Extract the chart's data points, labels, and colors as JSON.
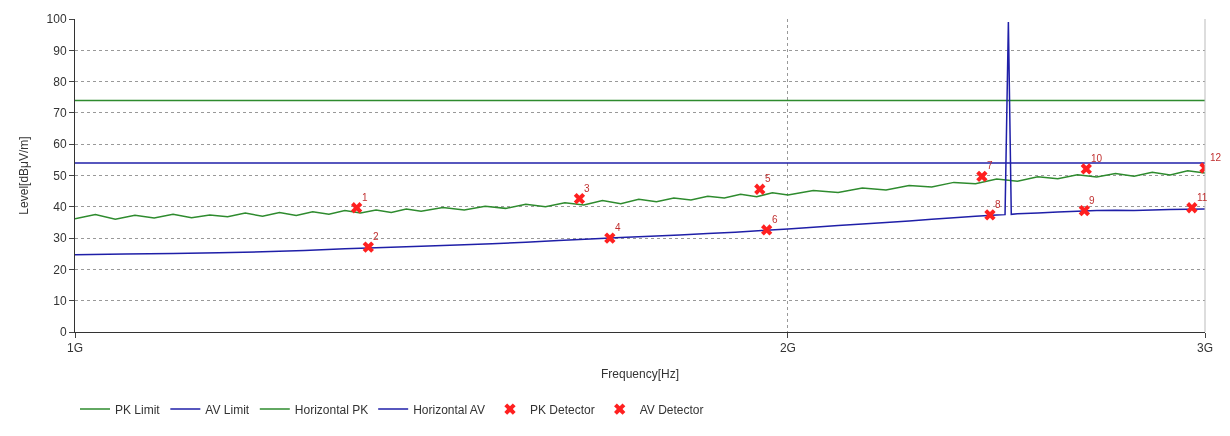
{
  "chart_data": {
    "type": "line",
    "xlabel": "Frequency[Hz]",
    "ylabel": "Level[dBμV/m]",
    "log": "x",
    "grid": true,
    "legend": "bottom",
    "marker": "none",
    "xlim": [
      1,
      3
    ],
    "xticks": [
      {
        "value": 1,
        "label": "1G"
      },
      {
        "value": 2,
        "label": "2G"
      },
      {
        "value": 3,
        "label": "3G"
      }
    ],
    "ylim": [
      0,
      100
    ],
    "yticks": [
      0,
      10,
      20,
      30,
      40,
      50,
      60,
      70,
      80,
      90,
      100
    ],
    "series": [
      {
        "name": "PK Limit",
        "color": "#2e8b2e",
        "x": [
          1,
          3
        ],
        "values": [
          74,
          74
        ]
      },
      {
        "name": "AV Limit",
        "color": "#1f1fa8",
        "x": [
          1,
          3
        ],
        "values": [
          54,
          54
        ]
      },
      {
        "name": "Horizontal PK",
        "color": "#2e8b2e",
        "x": [
          1.0,
          1.02,
          1.04,
          1.06,
          1.08,
          1.1,
          1.12,
          1.14,
          1.16,
          1.18,
          1.2,
          1.22,
          1.24,
          1.26,
          1.28,
          1.3,
          1.32,
          1.34,
          1.36,
          1.38,
          1.4,
          1.43,
          1.46,
          1.49,
          1.52,
          1.55,
          1.58,
          1.61,
          1.64,
          1.67,
          1.7,
          1.73,
          1.76,
          1.79,
          1.82,
          1.85,
          1.88,
          1.91,
          1.94,
          1.97,
          2.0,
          2.05,
          2.1,
          2.15,
          2.2,
          2.25,
          2.3,
          2.35,
          2.4,
          2.45,
          2.5,
          2.55,
          2.6,
          2.65,
          2.7,
          2.75,
          2.8,
          2.85,
          2.9,
          2.95,
          3.0
        ],
        "values": [
          36.2,
          37.5,
          36.0,
          37.3,
          36.4,
          37.6,
          36.5,
          37.4,
          36.8,
          38.0,
          37.0,
          38.2,
          37.2,
          38.4,
          37.6,
          38.8,
          38.0,
          39.0,
          38.2,
          39.3,
          38.6,
          39.8,
          39.0,
          40.2,
          39.5,
          40.8,
          40.0,
          41.3,
          40.6,
          42.0,
          41.0,
          42.4,
          41.6,
          42.8,
          42.2,
          43.4,
          42.8,
          44.0,
          43.2,
          44.5,
          43.8,
          45.2,
          44.6,
          46.0,
          45.4,
          46.8,
          46.3,
          47.8,
          47.4,
          48.9,
          48.2,
          49.6,
          49.0,
          50.2,
          49.5,
          50.6,
          49.8,
          51.0,
          50.2,
          51.5,
          50.8
        ]
      },
      {
        "name": "Horizontal AV",
        "color": "#1f1fa8",
        "x": [
          1.0,
          1.05,
          1.1,
          1.15,
          1.2,
          1.25,
          1.3,
          1.35,
          1.4,
          1.45,
          1.5,
          1.55,
          1.6,
          1.65,
          1.7,
          1.75,
          1.8,
          1.85,
          1.9,
          1.95,
          2.0,
          2.05,
          2.1,
          2.15,
          2.2,
          2.25,
          2.3,
          2.35,
          2.4,
          2.45,
          2.47,
          2.478,
          2.485,
          2.5,
          2.55,
          2.6,
          2.65,
          2.7,
          2.75,
          2.8,
          2.85,
          2.9,
          2.95,
          3.0
        ],
        "values": [
          24.7,
          24.9,
          25.1,
          25.3,
          25.6,
          26.0,
          26.6,
          27.0,
          27.4,
          27.8,
          28.2,
          28.7,
          29.2,
          29.7,
          30.2,
          30.6,
          31.0,
          31.5,
          31.9,
          32.4,
          32.9,
          33.5,
          34.0,
          34.5,
          35.0,
          35.5,
          36.0,
          36.5,
          37.0,
          37.4,
          37.5,
          99.0,
          37.6,
          37.8,
          38.0,
          38.3,
          38.6,
          38.8,
          38.9,
          38.8,
          39.0,
          39.1,
          39.2,
          39.3
        ]
      },
      {
        "name": "PK Detector",
        "type": "scatter",
        "marker": "cross",
        "color": "#ff2020",
        "x": [
          1.315,
          1.633,
          1.946,
          2.415,
          2.673,
          3.0
        ],
        "values": [
          39.7,
          42.6,
          45.6,
          49.7,
          52.1,
          52.4
        ]
      },
      {
        "name": "AV Detector",
        "type": "scatter",
        "marker": "cross",
        "color": "#ff2020",
        "x": [
          1.33,
          1.682,
          1.959,
          2.434,
          2.668,
          2.962
        ],
        "values": [
          27.1,
          30.0,
          32.6,
          37.4,
          38.8,
          39.7
        ]
      }
    ],
    "annotations": [
      {
        "text": "1",
        "x": 1.315,
        "y": 39.7
      },
      {
        "text": "2",
        "x": 1.33,
        "y": 27.1
      },
      {
        "text": "3",
        "x": 1.633,
        "y": 42.6
      },
      {
        "text": "4",
        "x": 1.682,
        "y": 30.0
      },
      {
        "text": "5",
        "x": 1.946,
        "y": 45.6
      },
      {
        "text": "6",
        "x": 1.959,
        "y": 32.6
      },
      {
        "text": "7",
        "x": 2.415,
        "y": 49.7
      },
      {
        "text": "8",
        "x": 2.434,
        "y": 37.4
      },
      {
        "text": "9",
        "x": 2.668,
        "y": 38.8
      },
      {
        "text": "10",
        "x": 2.673,
        "y": 52.1
      },
      {
        "text": "11",
        "x": 2.962,
        "y": 39.7
      },
      {
        "text": "12",
        "x": 3.0,
        "y": 52.4
      }
    ]
  }
}
